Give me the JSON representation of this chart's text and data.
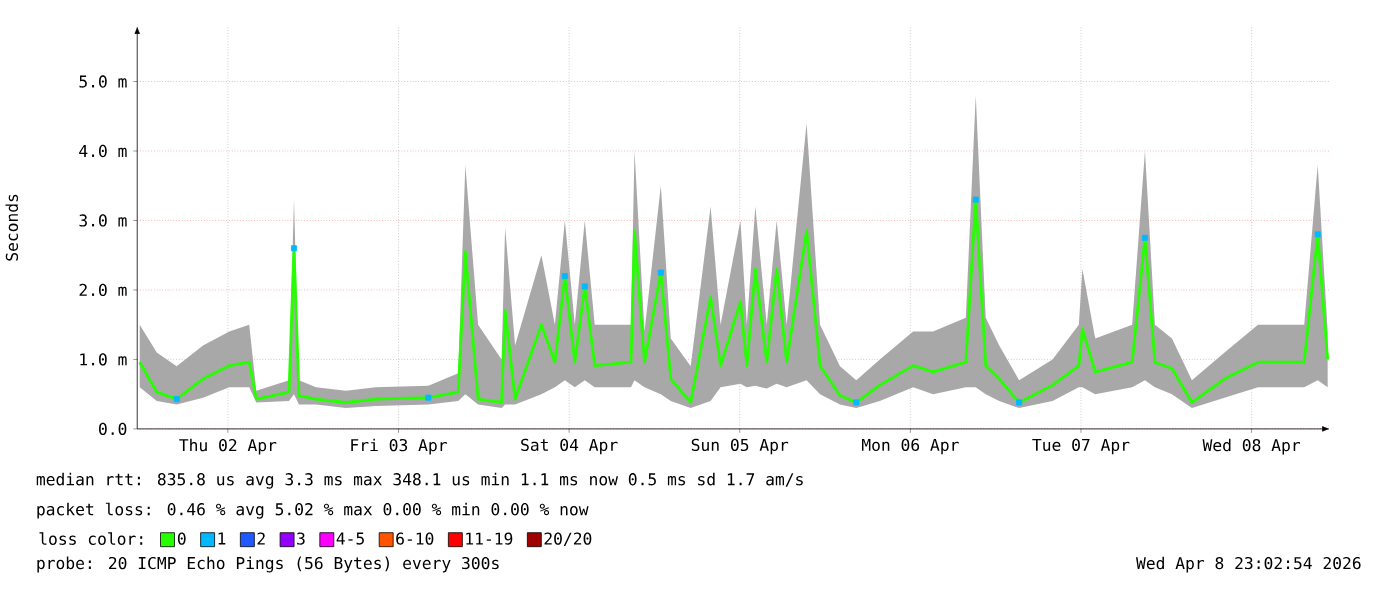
{
  "chart_data": {
    "type": "line",
    "ylabel": "Seconds",
    "xlim": [
      "2026-04-01T23:15",
      "2026-04-08T23:03"
    ],
    "xticks": [
      {
        "value": "2026-04-02T12:00",
        "label": "Thu 02 Apr"
      },
      {
        "value": "2026-04-03T12:00",
        "label": "Fri 03 Apr"
      },
      {
        "value": "2026-04-04T12:00",
        "label": "Sat 04 Apr"
      },
      {
        "value": "2026-04-05T12:00",
        "label": "Sun 05 Apr"
      },
      {
        "value": "2026-04-06T12:00",
        "label": "Mon 06 Apr"
      },
      {
        "value": "2026-04-07T12:00",
        "label": "Tue 07 Apr"
      },
      {
        "value": "2026-04-08T12:00",
        "label": "Wed 08 Apr"
      }
    ],
    "ylim": [
      0,
      5.8
    ],
    "yticks": [
      {
        "value": 0,
        "label": "0.0"
      },
      {
        "value": 1,
        "label": "1.0 m"
      },
      {
        "value": 2,
        "label": "2.0 m"
      },
      {
        "value": 3,
        "label": "3.0 m"
      },
      {
        "value": 4,
        "label": "4.0 m"
      },
      {
        "value": 5,
        "label": "5.0 m"
      }
    ],
    "grid": true,
    "legend": "bottom left",
    "legend_title": "loss color:",
    "x": [
      "2026-04-01T23:36",
      "2026-04-02T02:00",
      "2026-04-02T04:48",
      "2026-04-02T08:30",
      "2026-04-02T12:12",
      "2026-04-02T15:00",
      "2026-04-02T16:00",
      "2026-04-02T20:36",
      "2026-04-02T21:18",
      "2026-04-02T22:00",
      "2026-04-03T00:24",
      "2026-04-03T04:36",
      "2026-04-03T08:48",
      "2026-04-03T16:12",
      "2026-04-03T20:24",
      "2026-04-03T21:24",
      "2026-04-03T23:12",
      "2026-04-04T02:30",
      "2026-04-04T03:00",
      "2026-04-04T04:24",
      "2026-04-04T08:06",
      "2026-04-04T10:00",
      "2026-04-04T11:24",
      "2026-04-04T12:48",
      "2026-04-04T14:12",
      "2026-04-04T15:36",
      "2026-04-04T20:42",
      "2026-04-04T21:12",
      "2026-04-04T22:36",
      "2026-04-05T00:54",
      "2026-04-05T02:18",
      "2026-04-05T05:06",
      "2026-04-05T07:54",
      "2026-04-05T09:18",
      "2026-04-05T12:06",
      "2026-04-05T13:00",
      "2026-04-05T14:12",
      "2026-04-05T15:48",
      "2026-04-05T17:12",
      "2026-04-05T18:36",
      "2026-04-05T21:24",
      "2026-04-05T23:18",
      "2026-04-06T02:06",
      "2026-04-06T04:24",
      "2026-04-06T07:42",
      "2026-04-06T12:24",
      "2026-04-06T15:12",
      "2026-04-06T19:48",
      "2026-04-06T21:12",
      "2026-04-06T22:36",
      "2026-04-07T00:30",
      "2026-04-07T03:18",
      "2026-04-07T08:00",
      "2026-04-07T11:42",
      "2026-04-07T12:12",
      "2026-04-07T14:00",
      "2026-04-07T19:12",
      "2026-04-07T21:00",
      "2026-04-07T22:24",
      "2026-04-08T00:48",
      "2026-04-08T03:36",
      "2026-04-08T08:12",
      "2026-04-08T12:54",
      "2026-04-08T19:24",
      "2026-04-08T21:18",
      "2026-04-08T22:42"
    ],
    "series": [
      {
        "name": "0",
        "color": "#26ff00",
        "values": [
          0.96,
          0.53,
          0.43,
          0.72,
          0.91,
          0.96,
          0.43,
          0.53,
          2.6,
          0.48,
          0.43,
          0.38,
          0.43,
          0.45,
          0.53,
          2.55,
          0.43,
          0.38,
          1.7,
          0.43,
          1.5,
          0.96,
          2.2,
          0.96,
          2.05,
          0.91,
          0.96,
          2.85,
          0.96,
          2.25,
          0.72,
          0.38,
          1.9,
          0.91,
          1.83,
          0.91,
          2.3,
          0.96,
          2.3,
          0.96,
          2.85,
          0.91,
          0.48,
          0.38,
          0.63,
          0.91,
          0.82,
          0.96,
          3.3,
          0.91,
          0.72,
          0.38,
          0.63,
          0.91,
          1.44,
          0.82,
          0.96,
          2.75,
          0.96,
          0.87,
          0.38,
          0.72,
          0.96,
          0.96,
          2.8,
          1.0
        ],
        "lower": [
          0.6,
          0.4,
          0.35,
          0.45,
          0.6,
          0.6,
          0.38,
          0.4,
          0.5,
          0.35,
          0.35,
          0.3,
          0.33,
          0.35,
          0.4,
          0.5,
          0.35,
          0.3,
          0.35,
          0.35,
          0.5,
          0.6,
          0.7,
          0.6,
          0.7,
          0.6,
          0.6,
          0.7,
          0.6,
          0.5,
          0.4,
          0.3,
          0.4,
          0.6,
          0.65,
          0.6,
          0.62,
          0.58,
          0.65,
          0.6,
          0.7,
          0.5,
          0.35,
          0.3,
          0.4,
          0.6,
          0.5,
          0.6,
          0.6,
          0.5,
          0.4,
          0.3,
          0.4,
          0.6,
          0.6,
          0.5,
          0.6,
          0.7,
          0.6,
          0.5,
          0.3,
          0.45,
          0.6,
          0.6,
          0.7,
          0.6
        ],
        "upper": [
          1.5,
          1.1,
          0.9,
          1.2,
          1.4,
          1.5,
          0.55,
          0.7,
          3.3,
          0.7,
          0.6,
          0.55,
          0.6,
          0.62,
          0.8,
          3.8,
          1.5,
          1.0,
          2.9,
          1.2,
          2.5,
          1.5,
          3.0,
          1.5,
          3.0,
          1.5,
          1.5,
          4.0,
          1.4,
          3.5,
          1.3,
          0.9,
          3.2,
          1.5,
          3.0,
          1.5,
          3.2,
          1.5,
          3.0,
          1.5,
          4.4,
          1.5,
          0.9,
          0.7,
          1.0,
          1.4,
          1.4,
          1.6,
          4.8,
          1.6,
          1.2,
          0.7,
          1.0,
          1.5,
          2.3,
          1.3,
          1.5,
          4.0,
          1.5,
          1.3,
          0.7,
          1.1,
          1.5,
          1.5,
          3.8,
          1.4
        ]
      },
      {
        "name": "1",
        "color": "#00b8ff",
        "type": "scatter",
        "marker": "square",
        "x": [
          "2026-04-02T04:48",
          "2026-04-02T21:18",
          "2026-04-03T16:12",
          "2026-04-04T11:24",
          "2026-04-04T14:12",
          "2026-04-05T00:54",
          "2026-04-06T04:24",
          "2026-04-06T21:12",
          "2026-04-07T03:18",
          "2026-04-07T21:00",
          "2026-04-08T21:18"
        ],
        "values": [
          0.43,
          2.6,
          0.45,
          2.2,
          2.05,
          2.25,
          0.38,
          3.3,
          0.38,
          2.75,
          2.8
        ]
      },
      {
        "name": "2",
        "color": "#1e5aff",
        "type": "scatter",
        "marker": "square",
        "values": [
          null,
          null,
          null,
          null,
          null,
          null,
          null,
          null,
          null,
          null,
          null,
          null,
          null,
          null,
          null,
          null,
          null,
          null,
          null,
          null,
          null,
          null,
          null,
          null,
          null,
          null,
          null,
          null,
          null,
          null,
          null,
          null,
          null,
          null,
          null,
          null,
          null,
          null,
          null,
          null,
          null,
          null,
          null,
          null,
          null,
          null,
          null,
          null,
          null,
          null,
          null,
          null,
          null,
          null,
          null,
          null,
          null,
          null,
          null,
          null,
          null,
          null,
          null,
          null,
          null,
          null
        ]
      },
      {
        "name": "3",
        "color": "#9400ff",
        "type": "scatter",
        "marker": "square",
        "values": [
          null,
          null,
          null,
          null,
          null,
          null,
          null,
          null,
          null,
          null,
          null,
          null,
          null,
          null,
          null,
          null,
          null,
          null,
          null,
          null,
          null,
          null,
          null,
          null,
          null,
          null,
          null,
          null,
          null,
          null,
          null,
          null,
          null,
          null,
          null,
          null,
          null,
          null,
          null,
          null,
          null,
          null,
          null,
          null,
          null,
          null,
          null,
          null,
          null,
          null,
          null,
          null,
          null,
          null,
          null,
          null,
          null,
          null,
          null,
          null,
          null,
          null,
          null,
          null,
          null,
          null
        ]
      },
      {
        "name": "4-5",
        "color": "#ff00ff",
        "type": "scatter",
        "marker": "square",
        "values": [
          null,
          null,
          null,
          null,
          null,
          null,
          null,
          null,
          null,
          null,
          null,
          null,
          null,
          null,
          null,
          null,
          null,
          null,
          null,
          null,
          null,
          null,
          null,
          null,
          null,
          null,
          null,
          null,
          null,
          null,
          null,
          null,
          null,
          null,
          null,
          null,
          null,
          null,
          null,
          null,
          null,
          null,
          null,
          null,
          null,
          null,
          null,
          null,
          null,
          null,
          null,
          null,
          null,
          null,
          null,
          null,
          null,
          null,
          null,
          null,
          null,
          null,
          null,
          null,
          null,
          null
        ]
      },
      {
        "name": "6-10",
        "color": "#ff5500",
        "type": "scatter",
        "marker": "square",
        "values": [
          null,
          null,
          null,
          null,
          null,
          null,
          null,
          null,
          null,
          null,
          null,
          null,
          null,
          null,
          null,
          null,
          null,
          null,
          null,
          null,
          null,
          null,
          null,
          null,
          null,
          null,
          null,
          null,
          null,
          null,
          null,
          null,
          null,
          null,
          null,
          null,
          null,
          null,
          null,
          null,
          null,
          null,
          null,
          null,
          null,
          null,
          null,
          null,
          null,
          null,
          null,
          null,
          null,
          null,
          null,
          null,
          null,
          null,
          null,
          null,
          null,
          null,
          null,
          null,
          null,
          null
        ]
      },
      {
        "name": "11-19",
        "color": "#ff0000",
        "type": "scatter",
        "marker": "square",
        "values": [
          null,
          null,
          null,
          null,
          null,
          null,
          null,
          null,
          null,
          null,
          null,
          null,
          null,
          null,
          null,
          null,
          null,
          null,
          null,
          null,
          null,
          null,
          null,
          null,
          null,
          null,
          null,
          null,
          null,
          null,
          null,
          null,
          null,
          null,
          null,
          null,
          null,
          null,
          null,
          null,
          null,
          null,
          null,
          null,
          null,
          null,
          null,
          null,
          null,
          null,
          null,
          null,
          null,
          null,
          null,
          null,
          null,
          null,
          null,
          null,
          null,
          null,
          null,
          null,
          null,
          null
        ]
      },
      {
        "name": "20/20",
        "color": "#a00000",
        "type": "scatter",
        "marker": "square",
        "values": [
          null,
          null,
          null,
          null,
          null,
          null,
          null,
          null,
          null,
          null,
          null,
          null,
          null,
          null,
          null,
          null,
          null,
          null,
          null,
          null,
          null,
          null,
          null,
          null,
          null,
          null,
          null,
          null,
          null,
          null,
          null,
          null,
          null,
          null,
          null,
          null,
          null,
          null,
          null,
          null,
          null,
          null,
          null,
          null,
          null,
          null,
          null,
          null,
          null,
          null,
          null,
          null,
          null,
          null,
          null,
          null,
          null,
          null,
          null,
          null,
          null,
          null,
          null,
          null,
          null,
          null
        ]
      }
    ],
    "annotations": [
      "median rtt:  835.8 us avg   3.3 ms max   348.1 us min   1.1 ms now   0.5 ms sd   1.7   am/s",
      "packet loss: 0.46 % avg   5.02 % max   0.00 % min   0.00 % now",
      "probe:       20 ICMP Echo Pings (56 Bytes) every 300s",
      "Wed Apr  8 23:02:54 2026"
    ]
  }
}
